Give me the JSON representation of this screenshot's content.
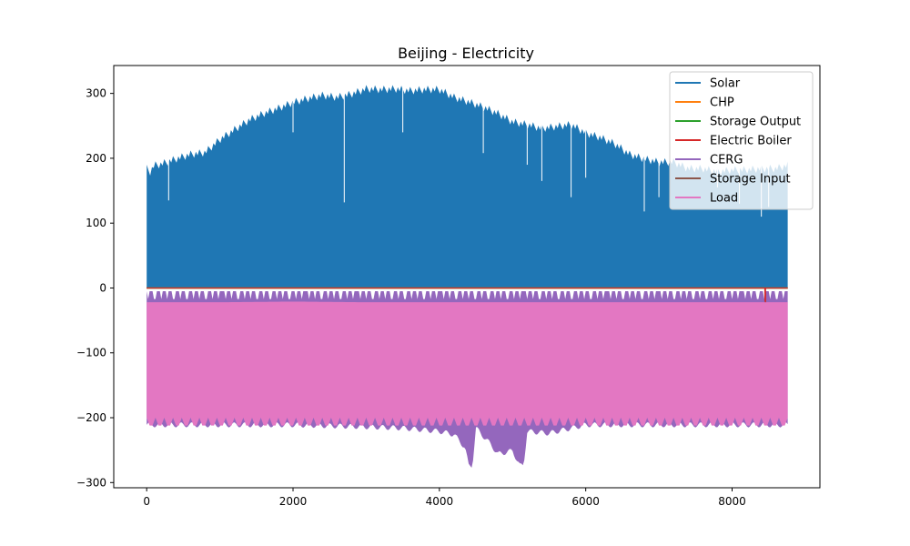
{
  "chart_data": {
    "type": "line",
    "title": "Beijing - Electricity",
    "xlabel": "",
    "ylabel": "",
    "xlim": [
      -450,
      9200
    ],
    "ylim": [
      -308,
      343
    ],
    "x_ticks": [
      0,
      2000,
      4000,
      6000,
      8000
    ],
    "y_ticks": [
      -300,
      -200,
      -100,
      0,
      100,
      200,
      300
    ],
    "grid": false,
    "legend_position": "top-right",
    "series": [
      {
        "name": "Solar",
        "color": "#1f77b4",
        "x_range": [
          0,
          8760
        ],
        "envelope_upper": [
          [
            0,
            190
          ],
          [
            50,
            185
          ],
          [
            100,
            195
          ],
          [
            200,
            197
          ],
          [
            400,
            205
          ],
          [
            600,
            212
          ],
          [
            800,
            215
          ],
          [
            1000,
            235
          ],
          [
            1200,
            250
          ],
          [
            1400,
            265
          ],
          [
            1600,
            275
          ],
          [
            1800,
            283
          ],
          [
            2000,
            292
          ],
          [
            2200,
            298
          ],
          [
            2400,
            303
          ],
          [
            2600,
            300
          ],
          [
            2800,
            305
          ],
          [
            3000,
            313
          ],
          [
            3200,
            312
          ],
          [
            3400,
            313
          ],
          [
            3600,
            310
          ],
          [
            3800,
            312
          ],
          [
            4000,
            312
          ],
          [
            4200,
            300
          ],
          [
            4400,
            293
          ],
          [
            4600,
            285
          ],
          [
            4800,
            275
          ],
          [
            5000,
            262
          ],
          [
            5200,
            258
          ],
          [
            5400,
            252
          ],
          [
            5600,
            255
          ],
          [
            5800,
            258
          ],
          [
            6000,
            245
          ],
          [
            6200,
            238
          ],
          [
            6400,
            228
          ],
          [
            6600,
            212
          ],
          [
            6800,
            205
          ],
          [
            7000,
            200
          ],
          [
            7200,
            200
          ],
          [
            7400,
            190
          ],
          [
            7600,
            190
          ],
          [
            7800,
            185
          ],
          [
            8000,
            188
          ],
          [
            8200,
            188
          ],
          [
            8400,
            190
          ],
          [
            8600,
            190
          ],
          [
            8760,
            195
          ]
        ],
        "dips": [
          [
            300,
            135
          ],
          [
            2000,
            240
          ],
          [
            2700,
            132
          ],
          [
            3500,
            240
          ],
          [
            4600,
            208
          ],
          [
            5200,
            190
          ],
          [
            5400,
            165
          ],
          [
            5800,
            140
          ],
          [
            6000,
            170
          ],
          [
            6800,
            118
          ],
          [
            7000,
            140
          ],
          [
            7800,
            155
          ],
          [
            8100,
            130
          ],
          [
            8400,
            110
          ],
          [
            8500,
            125
          ]
        ],
        "lower": 0
      },
      {
        "name": "CHP",
        "color": "#ff7f0e",
        "constant": 0
      },
      {
        "name": "Storage Output",
        "color": "#2ca02c",
        "constant": 0
      },
      {
        "name": "Electric Boiler",
        "color": "#d62728",
        "constant": 0,
        "spikes": [
          [
            8450,
            -20
          ],
          [
            8455,
            -22
          ]
        ]
      },
      {
        "name": "CERG",
        "color": "#9467bd",
        "x_range": [
          0,
          8760
        ],
        "upper": -5,
        "envelope_lower": [
          [
            0,
            -215
          ],
          [
            1000,
            -215
          ],
          [
            2000,
            -215
          ],
          [
            3000,
            -218
          ],
          [
            3500,
            -220
          ],
          [
            4000,
            -225
          ],
          [
            4200,
            -230
          ],
          [
            4350,
            -250
          ],
          [
            4400,
            -278
          ],
          [
            4450,
            -278
          ],
          [
            4500,
            -220
          ],
          [
            4700,
            -245
          ],
          [
            4800,
            -260
          ],
          [
            5000,
            -255
          ],
          [
            5100,
            -278
          ],
          [
            5150,
            -278
          ],
          [
            5200,
            -225
          ],
          [
            5500,
            -228
          ],
          [
            6000,
            -215
          ],
          [
            7000,
            -215
          ],
          [
            8000,
            -215
          ],
          [
            8760,
            -215
          ]
        ]
      },
      {
        "name": "Storage Input",
        "color": "#8c564b",
        "constant": 0
      },
      {
        "name": "Load",
        "color": "#e377c2",
        "x_range": [
          0,
          8760
        ],
        "envelope_upper": [
          [
            0,
            -22
          ],
          [
            1000,
            -22
          ],
          [
            2000,
            -21
          ],
          [
            3000,
            -22
          ],
          [
            4000,
            -22
          ],
          [
            5000,
            -22
          ],
          [
            6000,
            -22
          ],
          [
            7000,
            -22
          ],
          [
            8000,
            -22
          ],
          [
            8760,
            -22
          ]
        ],
        "envelope_lower": [
          [
            0,
            -212
          ],
          [
            1000,
            -212
          ],
          [
            2000,
            -212
          ],
          [
            3000,
            -212
          ],
          [
            4000,
            -212
          ],
          [
            5000,
            -212
          ],
          [
            6000,
            -212
          ],
          [
            7000,
            -212
          ],
          [
            8000,
            -212
          ],
          [
            8760,
            -212
          ]
        ]
      }
    ]
  }
}
